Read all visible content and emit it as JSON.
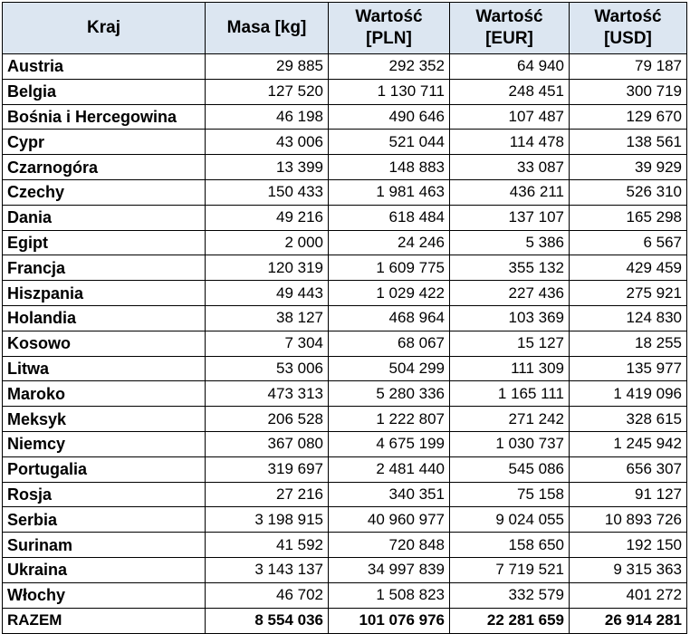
{
  "table": {
    "columns": [
      {
        "lines": [
          "Kraj"
        ]
      },
      {
        "lines": [
          "Masa [kg]"
        ]
      },
      {
        "lines": [
          "Wartość",
          "[PLN]"
        ]
      },
      {
        "lines": [
          "Wartość",
          "[EUR]"
        ]
      },
      {
        "lines": [
          "Wartość",
          "[USD]"
        ]
      }
    ],
    "rows": [
      [
        "Austria",
        "29 885",
        "292 352",
        "64 940",
        "79 187"
      ],
      [
        "Belgia",
        "127 520",
        "1 130 711",
        "248 451",
        "300 719"
      ],
      [
        "Bośnia i Hercegowina",
        "46 198",
        "490 646",
        "107 487",
        "129 670"
      ],
      [
        "Cypr",
        "43 006",
        "521 044",
        "114 478",
        "138 561"
      ],
      [
        "Czarnogóra",
        "13 399",
        "148 883",
        "33 087",
        "39 929"
      ],
      [
        "Czechy",
        "150 433",
        "1 981 463",
        "436 211",
        "526 310"
      ],
      [
        "Dania",
        "49 216",
        "618 484",
        "137 107",
        "165 298"
      ],
      [
        "Egipt",
        "2 000",
        "24 246",
        "5 386",
        "6 567"
      ],
      [
        "Francja",
        "120 319",
        "1 609 775",
        "355 132",
        "429 459"
      ],
      [
        "Hiszpania",
        "49 443",
        "1 029 422",
        "227 436",
        "275 921"
      ],
      [
        "Holandia",
        "38 127",
        "468 964",
        "103 369",
        "124 830"
      ],
      [
        "Kosowo",
        "7 304",
        "68 067",
        "15 127",
        "18 255"
      ],
      [
        "Litwa",
        "53 006",
        "504 299",
        "111 309",
        "135 977"
      ],
      [
        "Maroko",
        "473 313",
        "5 280 336",
        "1 165 111",
        "1 419 096"
      ],
      [
        "Meksyk",
        "206 528",
        "1 222 807",
        "271 242",
        "328 615"
      ],
      [
        "Niemcy",
        "367 080",
        "4 675 199",
        "1 030 737",
        "1 245 942"
      ],
      [
        "Portugalia",
        "319 697",
        "2 481 440",
        "545 086",
        "656 307"
      ],
      [
        "Rosja",
        "27 216",
        "340 351",
        "75 158",
        "91 127"
      ],
      [
        "Serbia",
        "3 198 915",
        "40 960 977",
        "9 024 055",
        "10 893 726"
      ],
      [
        "Surinam",
        "41 592",
        "720 848",
        "158 650",
        "192 150"
      ],
      [
        "Ukraina",
        "3 143 137",
        "34 997 839",
        "7 719 521",
        "9 315 363"
      ],
      [
        "Włochy",
        "46 702",
        "1 508 823",
        "332 579",
        "401 272"
      ]
    ],
    "total": [
      "RAZEM",
      "8 554 036",
      "101 076 976",
      "22 281 659",
      "26 914 281"
    ]
  },
  "colors": {
    "header_background": "#dce6f1",
    "border": "#000000",
    "text": "#000000"
  }
}
